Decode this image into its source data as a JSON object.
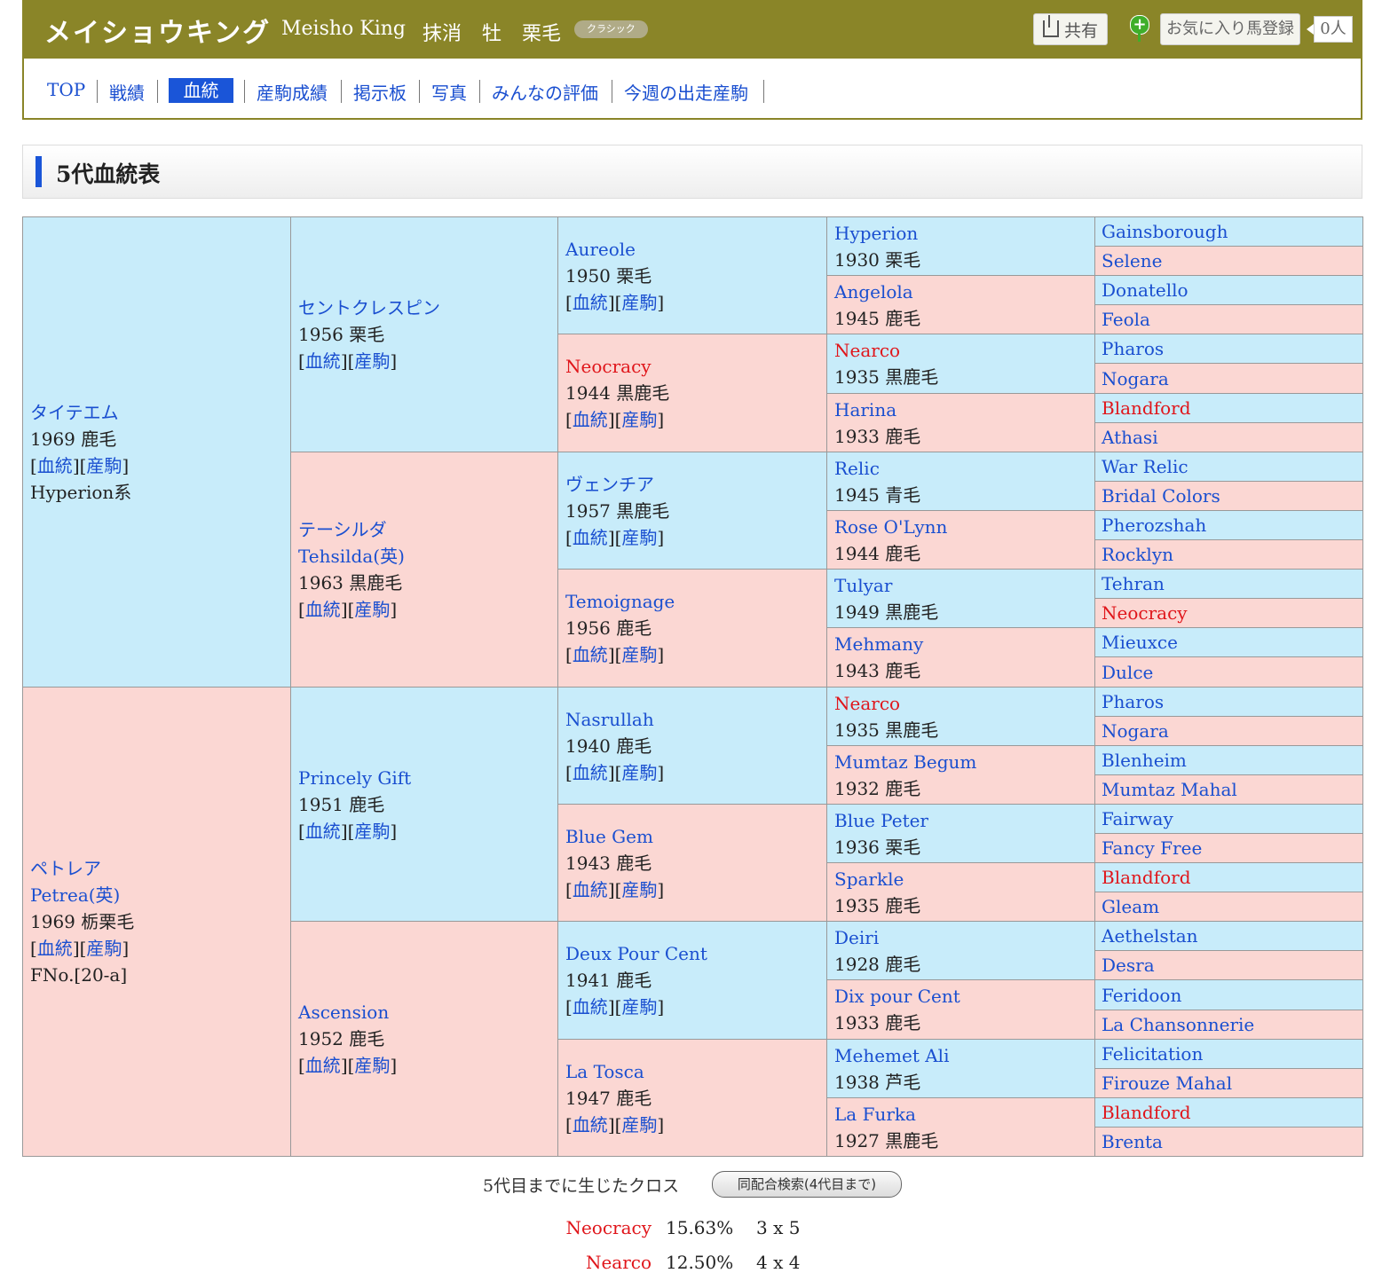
{
  "header": {
    "name_ja": "メイショウキング",
    "name_en": "Meisho King",
    "status": "抹消",
    "sex": "牡",
    "color": "栗毛",
    "badge": "クラシック",
    "share_label": "共有",
    "fav_label": "お気に入り馬登録",
    "fav_count": "0人"
  },
  "nav": {
    "items": [
      "TOP",
      "戦績",
      "血統",
      "産駒成績",
      "掲示板",
      "写真",
      "みんなの評価",
      "今週の出走産駒"
    ],
    "active": "血統"
  },
  "section_title": "5代血統表",
  "links": {
    "pedigree": "血統",
    "offspring": "産駒"
  },
  "pedigree": {
    "g1": [
      {
        "name": "タイテエム",
        "year": "1969 鹿毛",
        "extra": "Hyperion系",
        "sex": "m"
      },
      {
        "name": "ペトレア",
        "name2": "Petrea(英)",
        "year": "1969 栃栗毛",
        "extra": "FNo.[20-a]",
        "sex": "f"
      }
    ],
    "g2": [
      {
        "name": "セントクレスピン",
        "year": "1956 栗毛",
        "sex": "m"
      },
      {
        "name": "テーシルダ",
        "name2": "Tehsilda(英)",
        "year": "1963 黒鹿毛",
        "sex": "f"
      },
      {
        "name": "Princely Gift",
        "year": "1951 鹿毛",
        "sex": "m"
      },
      {
        "name": "Ascension",
        "year": "1952 鹿毛",
        "sex": "f"
      }
    ],
    "g3": [
      {
        "name": "Aureole",
        "year": "1950 栗毛",
        "sex": "m"
      },
      {
        "name": "Neocracy",
        "year": "1944 黒鹿毛",
        "sex": "f",
        "red": true
      },
      {
        "name": "ヴェンチア",
        "year": "1957 黒鹿毛",
        "sex": "m"
      },
      {
        "name": "Temoignage",
        "year": "1956 鹿毛",
        "sex": "f"
      },
      {
        "name": "Nasrullah",
        "year": "1940 鹿毛",
        "sex": "m"
      },
      {
        "name": "Blue Gem",
        "year": "1943 鹿毛",
        "sex": "f"
      },
      {
        "name": "Deux Pour Cent",
        "year": "1941 鹿毛",
        "sex": "m"
      },
      {
        "name": "La Tosca",
        "year": "1947 鹿毛",
        "sex": "f"
      }
    ],
    "g4": [
      {
        "name": "Hyperion",
        "year": "1930 栗毛",
        "sex": "m"
      },
      {
        "name": "Angelola",
        "year": "1945 鹿毛",
        "sex": "f"
      },
      {
        "name": "Nearco",
        "year": "1935 黒鹿毛",
        "sex": "m",
        "red": true
      },
      {
        "name": "Harina",
        "year": "1933 鹿毛",
        "sex": "f"
      },
      {
        "name": "Relic",
        "year": "1945 青毛",
        "sex": "m"
      },
      {
        "name": "Rose O'Lynn",
        "year": "1944 鹿毛",
        "sex": "f"
      },
      {
        "name": "Tulyar",
        "year": "1949 黒鹿毛",
        "sex": "m"
      },
      {
        "name": "Mehmany",
        "year": "1943 鹿毛",
        "sex": "f"
      },
      {
        "name": "Nearco",
        "year": "1935 黒鹿毛",
        "sex": "m",
        "red": true
      },
      {
        "name": "Mumtaz Begum",
        "year": "1932 鹿毛",
        "sex": "f"
      },
      {
        "name": "Blue Peter",
        "year": "1936 栗毛",
        "sex": "m"
      },
      {
        "name": "Sparkle",
        "year": "1935 鹿毛",
        "sex": "f"
      },
      {
        "name": "Deiri",
        "year": "1928 鹿毛",
        "sex": "m"
      },
      {
        "name": "Dix pour Cent",
        "year": "1933 鹿毛",
        "sex": "f"
      },
      {
        "name": "Mehemet Ali",
        "year": "1938 芦毛",
        "sex": "m"
      },
      {
        "name": "La Furka",
        "year": "1927 黒鹿毛",
        "sex": "f"
      }
    ],
    "g5": [
      {
        "name": "Gainsborough",
        "sex": "m"
      },
      {
        "name": "Selene",
        "sex": "f"
      },
      {
        "name": "Donatello",
        "sex": "m"
      },
      {
        "name": "Feola",
        "sex": "f"
      },
      {
        "name": "Pharos",
        "sex": "m"
      },
      {
        "name": "Nogara",
        "sex": "f"
      },
      {
        "name": "Blandford",
        "sex": "m",
        "red": true
      },
      {
        "name": "Athasi",
        "sex": "f"
      },
      {
        "name": "War Relic",
        "sex": "m"
      },
      {
        "name": "Bridal Colors",
        "sex": "f"
      },
      {
        "name": "Pherozshah",
        "sex": "m"
      },
      {
        "name": "Rocklyn",
        "sex": "f"
      },
      {
        "name": "Tehran",
        "sex": "m"
      },
      {
        "name": "Neocracy",
        "sex": "f",
        "red": true
      },
      {
        "name": "Mieuxce",
        "sex": "m"
      },
      {
        "name": "Dulce",
        "sex": "f"
      },
      {
        "name": "Pharos",
        "sex": "m"
      },
      {
        "name": "Nogara",
        "sex": "f"
      },
      {
        "name": "Blenheim",
        "sex": "m"
      },
      {
        "name": "Mumtaz Mahal",
        "sex": "f"
      },
      {
        "name": "Fairway",
        "sex": "m"
      },
      {
        "name": "Fancy Free",
        "sex": "f"
      },
      {
        "name": "Blandford",
        "sex": "m",
        "red": true
      },
      {
        "name": "Gleam",
        "sex": "f"
      },
      {
        "name": "Aethelstan",
        "sex": "m"
      },
      {
        "name": "Desra",
        "sex": "f"
      },
      {
        "name": "Feridoon",
        "sex": "m"
      },
      {
        "name": "La Chansonnerie",
        "sex": "f"
      },
      {
        "name": "Felicitation",
        "sex": "m"
      },
      {
        "name": "Firouze Mahal",
        "sex": "f"
      },
      {
        "name": "Blandford",
        "sex": "m",
        "red": true
      },
      {
        "name": "Brenta",
        "sex": "f"
      }
    ]
  },
  "crosses": {
    "title": "5代目までに生じたクロス",
    "search_button": "同配合検索(4代目まで)",
    "items": [
      {
        "name": "Neocracy",
        "percent": "15.63%",
        "gen": "3 x 5"
      },
      {
        "name": "Nearco",
        "percent": "12.50%",
        "gen": "4 x 4"
      }
    ]
  }
}
